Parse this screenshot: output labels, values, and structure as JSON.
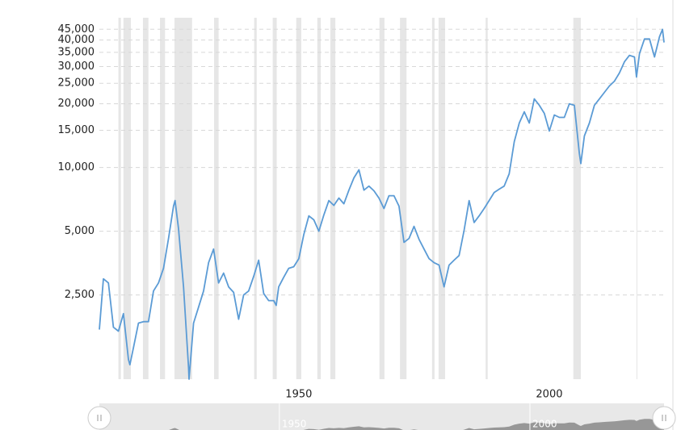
{
  "chart_data": {
    "type": "line",
    "log_scale": true,
    "grid": true,
    "color": "#5b9bd5",
    "recession_color": "#e6e6e6",
    "xlim": [
      1910.2,
      2022.9
    ],
    "xticks": [
      1950,
      2000
    ],
    "ylim": [
      1000,
      51000
    ],
    "yticks": [
      {
        "value": 2500,
        "label": "2,500"
      },
      {
        "value": 5000,
        "label": "5,000"
      },
      {
        "value": 10000,
        "label": "10,000"
      },
      {
        "value": 15000,
        "label": "15,000"
      },
      {
        "value": 20000,
        "label": "20,000"
      },
      {
        "value": 25000,
        "label": "25,000"
      },
      {
        "value": 30000,
        "label": "30,000"
      },
      {
        "value": 35000,
        "label": "35,000"
      },
      {
        "value": 40000,
        "label": "40,000"
      },
      {
        "value": 45000,
        "label": "45,000"
      }
    ],
    "recessions": [
      [
        1914.0,
        1914.5
      ],
      [
        1915.0,
        1916.5
      ],
      [
        1918.9,
        1920.0
      ],
      [
        1922.3,
        1923.3
      ],
      [
        1925.2,
        1928.7
      ],
      [
        1933.1,
        1934.0
      ],
      [
        1941.1,
        1941.6
      ],
      [
        1944.8,
        1945.6
      ],
      [
        1949.5,
        1950.5
      ],
      [
        1953.7,
        1954.4
      ],
      [
        1956.3,
        1957.3
      ],
      [
        1966.1,
        1967.1
      ],
      [
        1970.2,
        1971.5
      ],
      [
        1976.6,
        1977.1
      ],
      [
        1977.9,
        1979.2
      ],
      [
        1987.3,
        1987.7
      ],
      [
        2004.8,
        2006.3
      ],
      [
        2017.4,
        2017.5
      ]
    ],
    "x": [
      1910.2,
      1911,
      1912,
      1913,
      1914,
      1915,
      1916,
      1916.3,
      1917,
      1918,
      1919,
      1920,
      1921,
      1922,
      1923,
      1924,
      1925,
      1925.3,
      1926,
      1927,
      1928,
      1928.1,
      1929,
      1930,
      1931,
      1932,
      1933,
      1934,
      1935,
      1936,
      1937,
      1938,
      1939,
      1940,
      1941,
      1942,
      1943,
      1944,
      1945,
      1945.5,
      1946,
      1947,
      1948,
      1949,
      1950,
      1951,
      1952,
      1953,
      1954,
      1955,
      1956,
      1957,
      1958,
      1959,
      1960,
      1961,
      1962,
      1963,
      1964,
      1965,
      1966,
      1967,
      1968,
      1969,
      1970,
      1971,
      1972,
      1973,
      1974,
      1975,
      1976,
      1977,
      1978,
      1979,
      1980,
      1981,
      1982,
      1983,
      1984,
      1985,
      1986,
      1987,
      1988,
      1989,
      1990,
      1991,
      1992,
      1993,
      1994,
      1995,
      1996,
      1997,
      1998,
      1999,
      2000,
      2001,
      2002,
      2003,
      2004,
      2005,
      2006,
      2006.3,
      2007,
      2008,
      2009,
      2010,
      2011,
      2012,
      2013,
      2014,
      2015,
      2016,
      2017,
      2017.4,
      2018,
      2019,
      2020,
      2021,
      2022,
      2022.6,
      2022.9
    ],
    "values": [
      1715,
      2980,
      2850,
      1760,
      1685,
      2040,
      1240,
      1170,
      1410,
      1840,
      1870,
      1870,
      2610,
      2850,
      3340,
      4620,
      6570,
      6980,
      5140,
      2730,
      1135,
      1000,
      1840,
      2190,
      2610,
      3550,
      4120,
      2850,
      3170,
      2730,
      2570,
      1920,
      2500,
      2610,
      3060,
      3650,
      2540,
      2350,
      2350,
      2230,
      2730,
      3030,
      3340,
      3400,
      3710,
      4830,
      5910,
      5660,
      5000,
      5970,
      6980,
      6620,
      7170,
      6740,
      7820,
      8930,
      9750,
      7820,
      8170,
      7760,
      7170,
      6400,
      7360,
      7360,
      6570,
      4430,
      4620,
      5270,
      4580,
      4120,
      3710,
      3550,
      3460,
      2730,
      3460,
      3650,
      3840,
      5050,
      6980,
      5500,
      5910,
      6400,
      6980,
      7620,
      7900,
      8170,
      9330,
      13250,
      16230,
      18330,
      16230,
      21100,
      19680,
      18030,
      14880,
      17720,
      17250,
      17250,
      20000,
      19680,
      11620,
      10440,
      14100,
      16230,
      19680,
      21100,
      22650,
      24300,
      25580,
      27970,
      31580,
      33880,
      33300,
      26760,
      34500,
      40500,
      40500,
      33300,
      41500,
      44950,
      39000
    ]
  }
}
